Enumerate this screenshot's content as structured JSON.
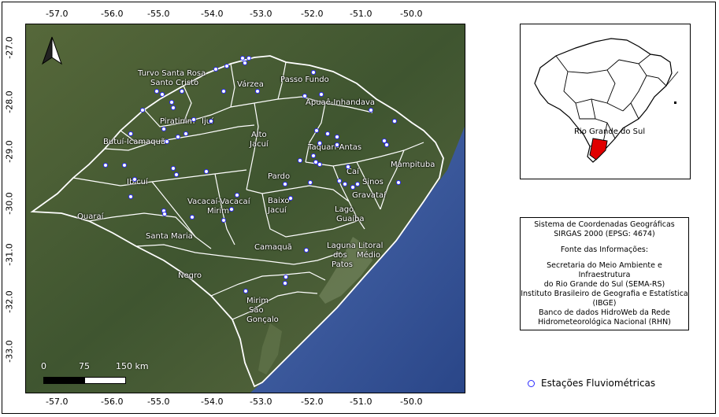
{
  "axes": {
    "lon_top": [
      "-57.0",
      "-56.0",
      "-55.0",
      "-54.0",
      "-53.0",
      "-52.0",
      "-51.0",
      "-50.0"
    ],
    "lon_bottom": [
      "-57.0",
      "-56.0",
      "-55.0",
      "-54.0",
      "-53.0",
      "-52.0",
      "-51.0",
      "-50.0"
    ],
    "lat_left": [
      "-27.0",
      "-28.0",
      "-29.0",
      "-30.0",
      "-31.0",
      "-32.0",
      "-33.0"
    ],
    "lat_right": [
      "-27.0",
      "-28.0",
      "-29.0",
      "-30.0",
      "-31.0",
      "-32.0",
      "-33.0"
    ]
  },
  "basins": [
    {
      "name": "Turvo Santa Rosa",
      "id": "turvo"
    },
    {
      "name": "Santo Cristo",
      "id": "santocristo"
    },
    {
      "name": "Várzea",
      "id": "varzea"
    },
    {
      "name": "Passo Fundo",
      "id": "passofundo"
    },
    {
      "name": "Apuaê-Inhandava",
      "id": "apuae"
    },
    {
      "name": "Piratinim",
      "id": "piratinim"
    },
    {
      "name": "Ijuí",
      "id": "ijui"
    },
    {
      "name": "Alto",
      "id": "alto"
    },
    {
      "name": "Jacuí",
      "id": "jacui_alto"
    },
    {
      "name": "Butuí-Icamaquã",
      "id": "butui"
    },
    {
      "name": "Taquari-Antas",
      "id": "taquari"
    },
    {
      "name": "Mampituba",
      "id": "mampituba"
    },
    {
      "name": "Caí",
      "id": "cai"
    },
    {
      "name": "Pardo",
      "id": "pardo"
    },
    {
      "name": "Sinos",
      "id": "sinos"
    },
    {
      "name": "Ibicuí",
      "id": "ibicui"
    },
    {
      "name": "Gravataí",
      "id": "gravatai"
    },
    {
      "name": "Vacacaí-Vacacaí",
      "id": "vacacai"
    },
    {
      "name": "Mirim",
      "id": "vacacai_mirim"
    },
    {
      "name": "Baixo",
      "id": "baixo"
    },
    {
      "name": "Jacuí",
      "id": "jacui_baixo"
    },
    {
      "name": "Lago",
      "id": "lago"
    },
    {
      "name": "Guaíba",
      "id": "guaiba"
    },
    {
      "name": "Quaraí",
      "id": "quarai"
    },
    {
      "name": "Santa Maria",
      "id": "santamaria"
    },
    {
      "name": "Camaquã",
      "id": "camaqua"
    },
    {
      "name": "Laguna Litoral",
      "id": "laguna"
    },
    {
      "name": "dos",
      "id": "dos"
    },
    {
      "name": "Médio",
      "id": "medio"
    },
    {
      "name": "Patos",
      "id": "patos"
    },
    {
      "name": "Negro",
      "id": "negro"
    },
    {
      "name": "Mirim",
      "id": "mirim_sc"
    },
    {
      "name": "São",
      "id": "sao"
    },
    {
      "name": "Gonçalo",
      "id": "goncalo"
    }
  ],
  "scalebar": {
    "labels": [
      "0",
      "75",
      "150 km"
    ]
  },
  "inset": {
    "label": "Rio Grande do Sul",
    "highlight_color": "#e00000"
  },
  "info": {
    "lines": [
      "Sistema de Coordenadas Geográficas",
      "SIRGAS 2000 (EPSG: 4674)",
      "",
      "Fonte das Informações:",
      "",
      "Secretaria do Meio Ambiente e Infraestrutura",
      "do Rio Grande do Sul (SEMA-RS)",
      "Instituto Brasileiro de Geografia e Estatística",
      "(IBGE)",
      "Banco de dados HidroWeb da Rede",
      "Hidrometeorológica Nacional (RHN)"
    ]
  },
  "legend": {
    "label": "Estações Fluviométricas",
    "symbol_color": "#2a2aff"
  },
  "colors": {
    "land": "#4a5a33",
    "ocean": "#3d5a9a",
    "boundary": "#ffffff"
  }
}
